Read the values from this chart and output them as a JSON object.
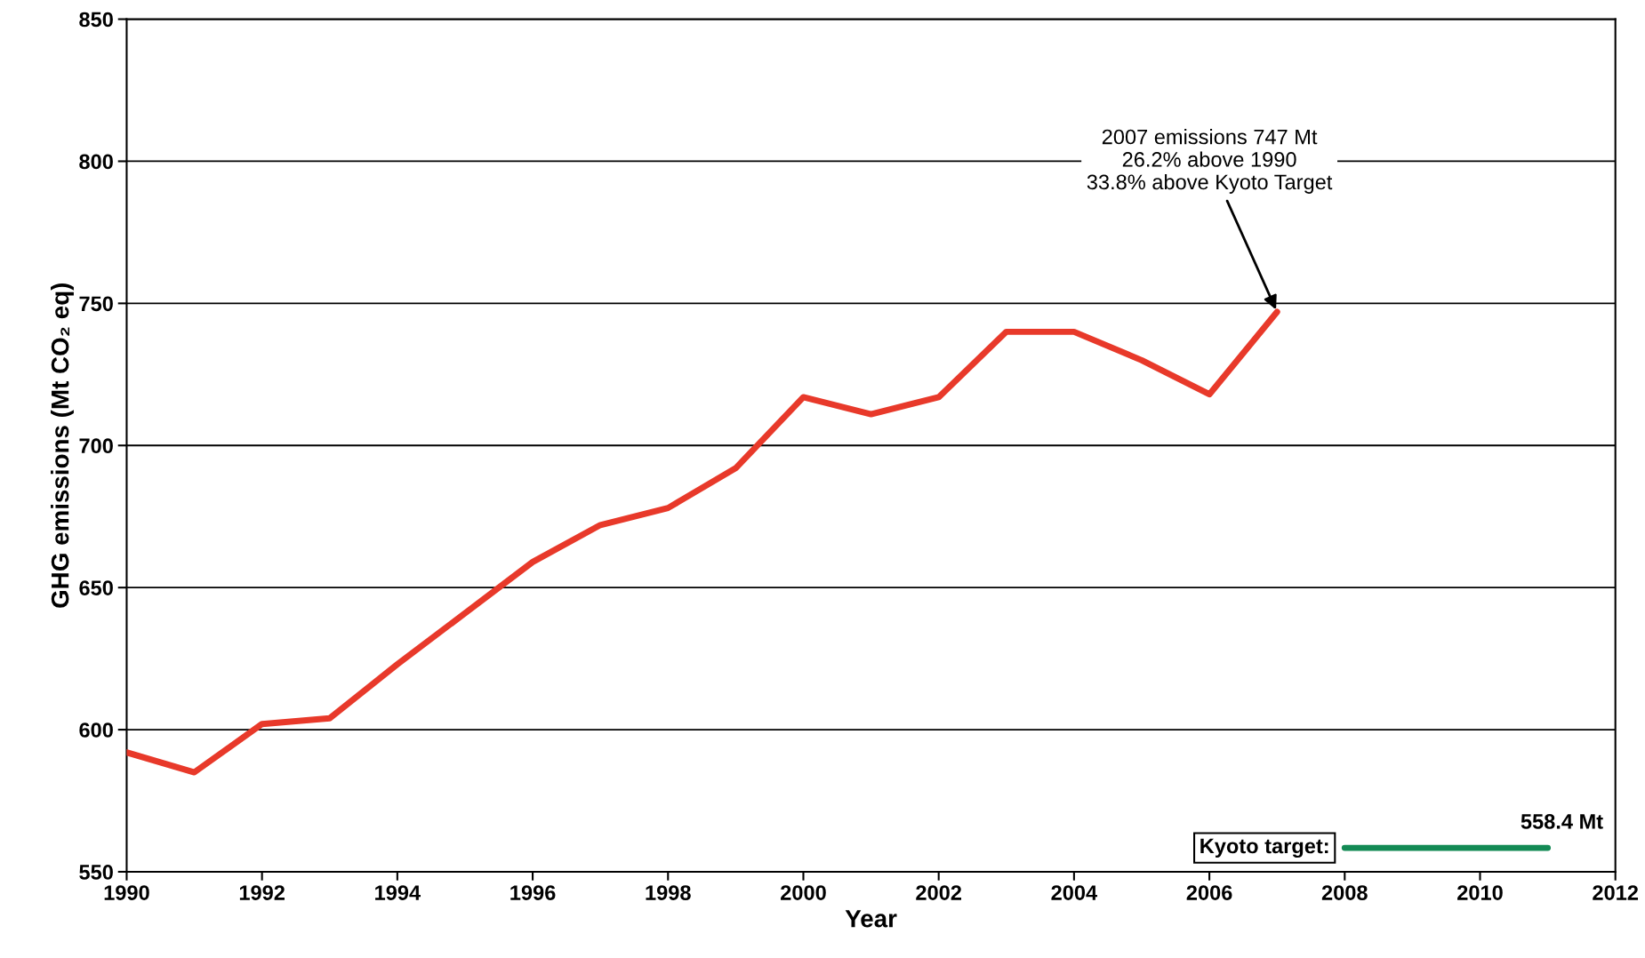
{
  "chart_data": {
    "type": "line",
    "xlabel": "Year",
    "ylabel": "GHG emissions (Mt CO₂ eq)",
    "series": [
      {
        "color": "#e8392a",
        "x": [
          1990,
          1991,
          1992,
          1993,
          1994,
          1995,
          1996,
          1997,
          1998,
          1999,
          2000,
          2001,
          2002,
          2003,
          2004,
          2005,
          2006,
          2007
        ],
        "values": [
          592,
          585,
          602,
          604,
          623,
          641,
          659,
          672,
          678,
          692,
          717,
          711,
          717,
          740,
          740,
          730,
          718,
          747
        ]
      },
      {
        "color": "#138a55",
        "x": [
          2008,
          2011
        ],
        "values": [
          558.4,
          558.4
        ]
      }
    ],
    "annotations": [
      {
        "text": "2007 emissions 747 Mt\n26.2% above 1990\n33.8% above Kyoto Target",
        "x": 2007,
        "y": 747
      },
      {
        "text": "558.4 Mt",
        "x": 2011,
        "y": 558.4
      },
      "Kyoto target:"
    ],
    "xlim": [
      1990,
      2012
    ],
    "xticks": [
      1990,
      1992,
      1994,
      1996,
      1998,
      2000,
      2002,
      2004,
      2006,
      2008,
      2010,
      2012
    ],
    "ylim": [
      550,
      850
    ],
    "yticks": [
      550,
      600,
      650,
      700,
      750,
      800,
      850
    ],
    "grid": "y",
    "line_style": "solid",
    "marker": "none"
  }
}
